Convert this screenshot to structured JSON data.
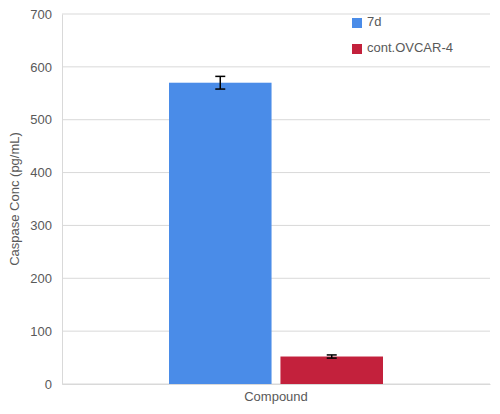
{
  "chart_data": {
    "type": "bar",
    "categories": [
      "Compound"
    ],
    "series": [
      {
        "name": "7d",
        "color": "#4a8ce8",
        "values": [
          570
        ],
        "errors": [
          12
        ]
      },
      {
        "name": "cont.OVCAR-4",
        "color": "#c3213c",
        "values": [
          52
        ],
        "errors": [
          3
        ]
      }
    ],
    "y_label": "Caspase Conc (pg/mL)",
    "ylim": [
      0,
      700
    ],
    "yticks": [
      0,
      100,
      200,
      300,
      400,
      500,
      600,
      700
    ],
    "grid": true,
    "legend": "top-right"
  }
}
